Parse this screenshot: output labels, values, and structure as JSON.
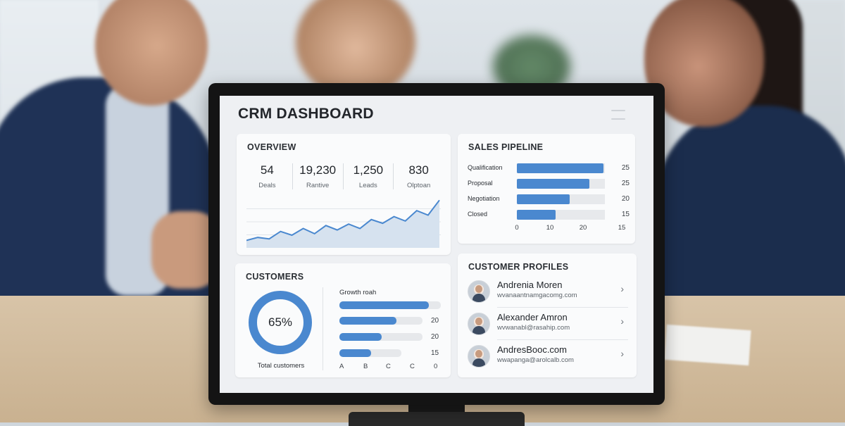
{
  "dashboard": {
    "title": "CRM DASHBOARD"
  },
  "overview": {
    "title": "OVERVIEW",
    "stats": [
      {
        "value": "54",
        "label": "Deals"
      },
      {
        "value": "19,230",
        "label": "Rantive"
      },
      {
        "value": "1,250",
        "label": "Leads"
      },
      {
        "value": "830",
        "label": "Olptoan"
      }
    ],
    "trend": [
      10,
      14,
      12,
      22,
      17,
      26,
      19,
      30,
      24,
      32,
      26,
      38,
      33,
      42,
      36,
      50,
      44,
      64
    ]
  },
  "pipeline": {
    "title": "SALES PIPELINE",
    "stages": [
      {
        "label": "Qualification",
        "value": "25",
        "fill": 0.98
      },
      {
        "label": "Proposal",
        "value": "25",
        "fill": 0.82
      },
      {
        "label": "Negotiation",
        "value": "20",
        "fill": 0.6
      },
      {
        "label": "Closed",
        "value": "15",
        "fill": 0.44
      }
    ],
    "axis": [
      "0",
      "10",
      "20",
      "15"
    ]
  },
  "customers": {
    "title": "CUSTOMERS",
    "donut_value": "65%",
    "donut_fraction": 0.65,
    "donut_caption": "Total customers",
    "growth_title": "Growth roah",
    "growth": [
      {
        "value": "",
        "fill": 0.88
      },
      {
        "value": "20",
        "fill": 0.56
      },
      {
        "value": "20",
        "fill": 0.42
      },
      {
        "value": "15",
        "fill": 0.31
      }
    ],
    "axis": [
      "A",
      "B",
      "C",
      "C",
      "0"
    ]
  },
  "profiles": {
    "title": "CUSTOMER PROFILES",
    "items": [
      {
        "name": "Andrenia Moren",
        "email": "wvanaantnamgacomg.com"
      },
      {
        "name": "Alexander Amron",
        "email": "wvwanabl@rasahip.com"
      },
      {
        "name": "AndresBooc.com",
        "email": "wwapanga@arolcalb.com"
      }
    ]
  },
  "colors": {
    "accent": "#4a88cf",
    "chart_fill": "#d6e2ef"
  }
}
